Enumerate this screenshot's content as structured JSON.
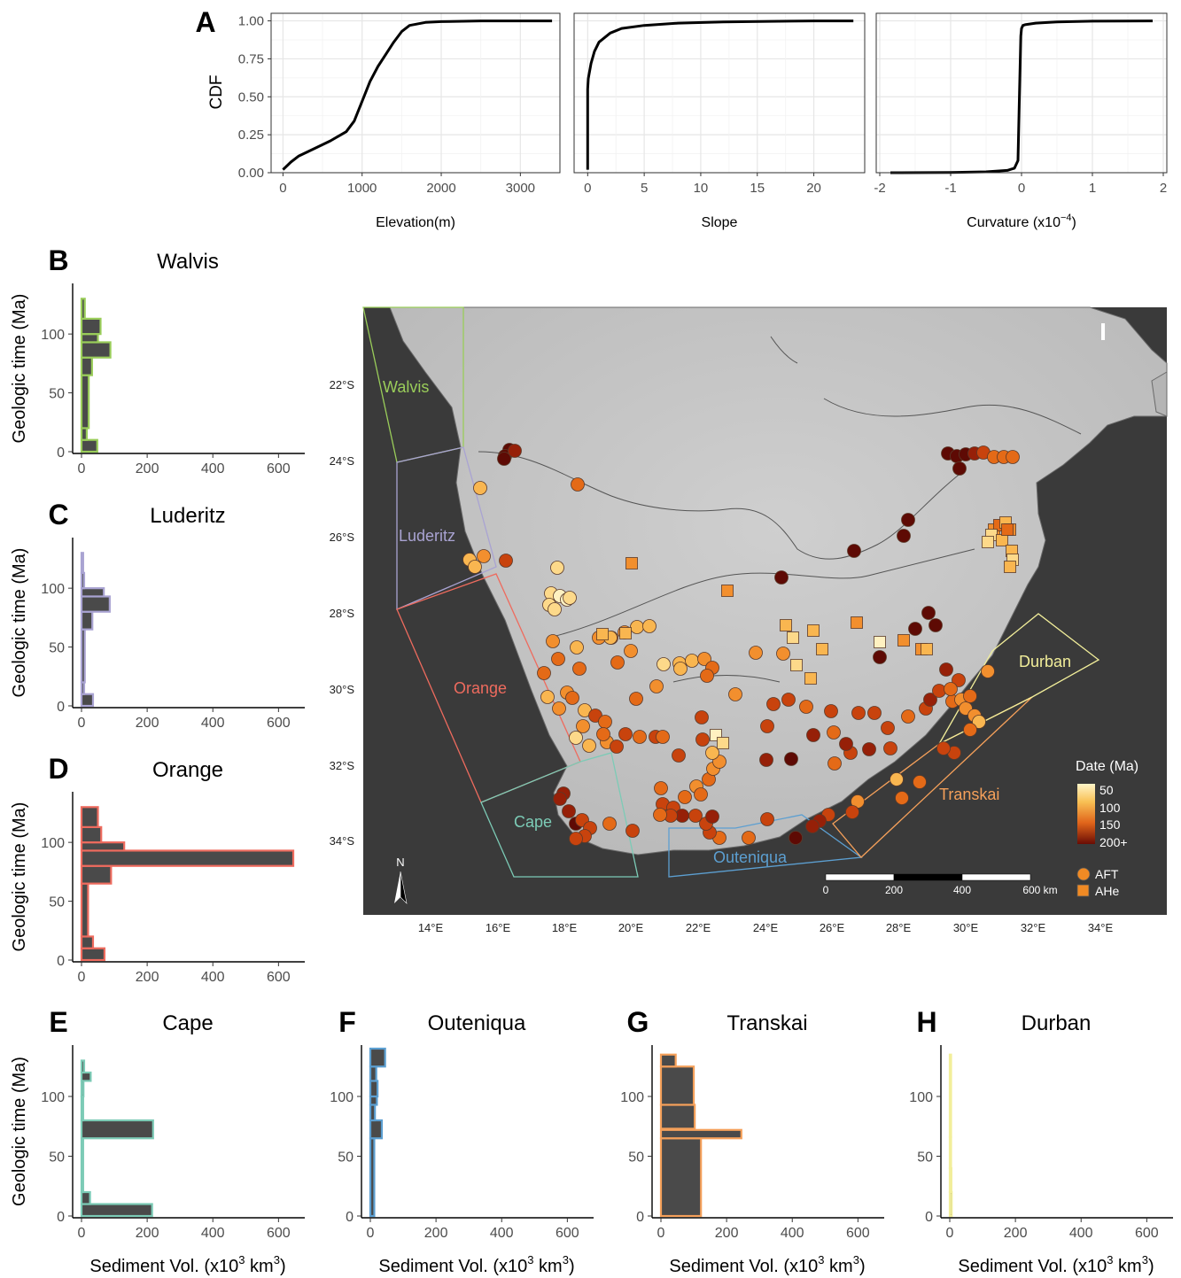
{
  "panel_letters": {
    "A": "A",
    "B": "B",
    "C": "C",
    "D": "D",
    "E": "E",
    "F": "F",
    "G": "G",
    "H": "H"
  },
  "cdf": {
    "ylabel": "CDF",
    "yticks": [
      "0.00",
      "0.25",
      "0.50",
      "0.75",
      "1.00"
    ],
    "panels": [
      {
        "xlabel": "Elevation(m)",
        "xticks": [
          "0",
          "1000",
          "2000",
          "3000"
        ]
      },
      {
        "xlabel": "Slope",
        "xticks": [
          "0",
          "5",
          "10",
          "15",
          "20"
        ]
      },
      {
        "xlabel": "Curvature (x10",
        "xlabel_sup": "−4",
        "xlabel_end": ")",
        "xticks": [
          "-2",
          "-1",
          "0",
          "1",
          "2"
        ]
      }
    ]
  },
  "hist": {
    "ylabel": "Geologic time (Ma)",
    "xlabel": "Sediment Vol. (x10",
    "xlabel_sup1": "3",
    "xlabel_mid": " km",
    "xlabel_sup2": "3",
    "xlabel_end": ")",
    "xticks": [
      "0",
      "200",
      "400",
      "600"
    ],
    "yticks": [
      "0",
      "50",
      "100"
    ],
    "titles": {
      "B": "Walvis",
      "C": "Luderitz",
      "D": "Orange",
      "E": "Cape",
      "F": "Outeniqua",
      "G": "Transkai",
      "H": "Durban"
    }
  },
  "map": {
    "lat_labels": [
      "22°S",
      "24°S",
      "26°S",
      "28°S",
      "30°S",
      "32°S",
      "34°S"
    ],
    "lon_labels": [
      "14°E",
      "16°E",
      "18°E",
      "20°E",
      "22°E",
      "24°E",
      "26°E",
      "28°E",
      "30°E",
      "32°E",
      "34°E"
    ],
    "basins": {
      "walvis": "Walvis",
      "luderitz": "Luderitz",
      "orange": "Orange",
      "cape": "Cape",
      "outeniqua": "Outeniqua",
      "transkai": "Transkai",
      "durban": "Durban"
    },
    "legend_title": "Date (Ma)",
    "legend_ticks": [
      "50",
      "100",
      "150",
      "200+"
    ],
    "legend_afr": "AFT",
    "legend_ahe": "AHe",
    "scalebar": [
      "0",
      "200",
      "400",
      "600 km"
    ],
    "north": "N",
    "panel_mark": "I"
  },
  "colors": {
    "walvis": "#9ACD5A",
    "luderitz": "#A9A3D2",
    "orange": "#EE6B5E",
    "cape": "#7CCBB6",
    "outeniqua": "#5C9FD1",
    "transkai": "#F5A05A",
    "durban": "#F2EE9A",
    "bar_fill": "#4a4a4a"
  },
  "chart_data": [
    {
      "type": "line",
      "title": "",
      "xlabel": "Elevation(m)",
      "ylabel": "CDF",
      "xlim": [
        -150,
        3500
      ],
      "ylim": [
        0,
        1.05
      ],
      "x": [
        0,
        100,
        200,
        400,
        600,
        800,
        900,
        1000,
        1100,
        1200,
        1300,
        1400,
        1500,
        1600,
        1800,
        2000,
        2500,
        3000,
        3400
      ],
      "y": [
        0.02,
        0.07,
        0.11,
        0.16,
        0.21,
        0.27,
        0.34,
        0.47,
        0.6,
        0.7,
        0.78,
        0.86,
        0.93,
        0.97,
        0.99,
        0.995,
        1.0,
        1.0,
        1.0
      ]
    },
    {
      "type": "line",
      "title": "",
      "xlabel": "Slope",
      "ylabel": "CDF",
      "xlim": [
        -1.2,
        24.5
      ],
      "ylim": [
        0,
        1.05
      ],
      "x": [
        0,
        0,
        0.05,
        0.3,
        0.6,
        1,
        2,
        3,
        5,
        8,
        12,
        16,
        20,
        23.5
      ],
      "y": [
        0.02,
        0.55,
        0.62,
        0.72,
        0.8,
        0.86,
        0.92,
        0.95,
        0.97,
        0.985,
        0.993,
        0.997,
        1.0,
        1.0
      ]
    },
    {
      "type": "line",
      "title": "",
      "xlabel": "Curvature (x10^-4)",
      "ylabel": "CDF",
      "xlim": [
        -2.05,
        2.05
      ],
      "ylim": [
        0,
        1.05
      ],
      "x": [
        -1.85,
        -1.0,
        -0.5,
        -0.2,
        -0.1,
        -0.05,
        -0.03,
        -0.01,
        0.0,
        0.02,
        0.05,
        0.2,
        0.5,
        1.0,
        1.85
      ],
      "y": [
        0.0,
        0.002,
        0.006,
        0.015,
        0.03,
        0.08,
        0.5,
        0.9,
        0.95,
        0.97,
        0.975,
        0.985,
        0.993,
        0.998,
        1.0
      ]
    },
    {
      "type": "bar",
      "title": "Walvis",
      "orientation": "horizontal",
      "xlabel": "",
      "ylabel": "Geologic time (Ma)",
      "xlim": [
        0,
        680
      ],
      "ylim": [
        0,
        140
      ],
      "bins": [
        {
          "lo": 0,
          "hi": 10,
          "v": 48
        },
        {
          "lo": 10,
          "hi": 20,
          "v": 16
        },
        {
          "lo": 20,
          "hi": 65,
          "v": 22
        },
        {
          "lo": 65,
          "hi": 80,
          "v": 32
        },
        {
          "lo": 80,
          "hi": 93,
          "v": 88
        },
        {
          "lo": 93,
          "hi": 100,
          "v": 50
        },
        {
          "lo": 100,
          "hi": 113,
          "v": 58
        },
        {
          "lo": 113,
          "hi": 130,
          "v": 10
        }
      ]
    },
    {
      "type": "bar",
      "title": "Luderitz",
      "orientation": "horizontal",
      "xlabel": "",
      "ylabel": "Geologic time (Ma)",
      "xlim": [
        0,
        680
      ],
      "ylim": [
        0,
        140
      ],
      "bins": [
        {
          "lo": 0,
          "hi": 10,
          "v": 35
        },
        {
          "lo": 10,
          "hi": 20,
          "v": 8
        },
        {
          "lo": 20,
          "hi": 65,
          "v": 10
        },
        {
          "lo": 65,
          "hi": 80,
          "v": 33
        },
        {
          "lo": 80,
          "hi": 93,
          "v": 86
        },
        {
          "lo": 93,
          "hi": 100,
          "v": 68
        },
        {
          "lo": 100,
          "hi": 113,
          "v": 8
        },
        {
          "lo": 113,
          "hi": 130,
          "v": 5
        }
      ]
    },
    {
      "type": "bar",
      "title": "Orange",
      "orientation": "horizontal",
      "xlabel": "",
      "ylabel": "Geologic time (Ma)",
      "xlim": [
        0,
        680
      ],
      "ylim": [
        0,
        140
      ],
      "bins": [
        {
          "lo": 0,
          "hi": 10,
          "v": 70
        },
        {
          "lo": 10,
          "hi": 20,
          "v": 35
        },
        {
          "lo": 20,
          "hi": 65,
          "v": 20
        },
        {
          "lo": 65,
          "hi": 80,
          "v": 90
        },
        {
          "lo": 80,
          "hi": 93,
          "v": 645
        },
        {
          "lo": 93,
          "hi": 100,
          "v": 130
        },
        {
          "lo": 100,
          "hi": 113,
          "v": 60
        },
        {
          "lo": 113,
          "hi": 130,
          "v": 50
        }
      ]
    },
    {
      "type": "bar",
      "title": "Cape",
      "orientation": "horizontal",
      "xlabel": "Sediment Vol. (x10^3 km^3)",
      "ylabel": "Geologic time (Ma)",
      "xlim": [
        0,
        680
      ],
      "ylim": [
        0,
        140
      ],
      "bins": [
        {
          "lo": 0,
          "hi": 10,
          "v": 215
        },
        {
          "lo": 10,
          "hi": 20,
          "v": 26
        },
        {
          "lo": 20,
          "hi": 65,
          "v": 5
        },
        {
          "lo": 65,
          "hi": 80,
          "v": 218
        },
        {
          "lo": 80,
          "hi": 100,
          "v": 5
        },
        {
          "lo": 100,
          "hi": 113,
          "v": 6
        },
        {
          "lo": 113,
          "hi": 120,
          "v": 28
        },
        {
          "lo": 120,
          "hi": 130,
          "v": 8
        }
      ]
    },
    {
      "type": "bar",
      "title": "Outeniqua",
      "orientation": "horizontal",
      "xlabel": "Sediment Vol. (x10^3 km^3)",
      "ylabel": "",
      "xlim": [
        0,
        680
      ],
      "ylim": [
        0,
        140
      ],
      "bins": [
        {
          "lo": 0,
          "hi": 65,
          "v": 12
        },
        {
          "lo": 65,
          "hi": 80,
          "v": 35
        },
        {
          "lo": 80,
          "hi": 93,
          "v": 14
        },
        {
          "lo": 93,
          "hi": 100,
          "v": 20
        },
        {
          "lo": 100,
          "hi": 113,
          "v": 22
        },
        {
          "lo": 113,
          "hi": 125,
          "v": 18
        },
        {
          "lo": 125,
          "hi": 140,
          "v": 45
        }
      ]
    },
    {
      "type": "bar",
      "title": "Transkai",
      "orientation": "horizontal",
      "xlabel": "Sediment Vol. (x10^3 km^3)",
      "ylabel": "",
      "xlim": [
        0,
        680
      ],
      "ylim": [
        0,
        140
      ],
      "bins": [
        {
          "lo": 0,
          "hi": 65,
          "v": 122
        },
        {
          "lo": 65,
          "hi": 72,
          "v": 245
        },
        {
          "lo": 72,
          "hi": 73,
          "v": 0
        },
        {
          "lo": 73,
          "hi": 93,
          "v": 103
        },
        {
          "lo": 93,
          "hi": 125,
          "v": 100
        },
        {
          "lo": 125,
          "hi": 135,
          "v": 45
        }
      ]
    },
    {
      "type": "bar",
      "title": "Durban",
      "orientation": "horizontal",
      "xlabel": "Sediment Vol. (x10^3 km^3)",
      "ylabel": "",
      "xlim": [
        0,
        680
      ],
      "ylim": [
        0,
        140
      ],
      "bins": [
        {
          "lo": 0,
          "hi": 20,
          "v": 6
        },
        {
          "lo": 20,
          "hi": 40,
          "v": 5
        },
        {
          "lo": 40,
          "hi": 66,
          "v": 4
        },
        {
          "lo": 66,
          "hi": 135,
          "v": 2
        }
      ]
    }
  ]
}
